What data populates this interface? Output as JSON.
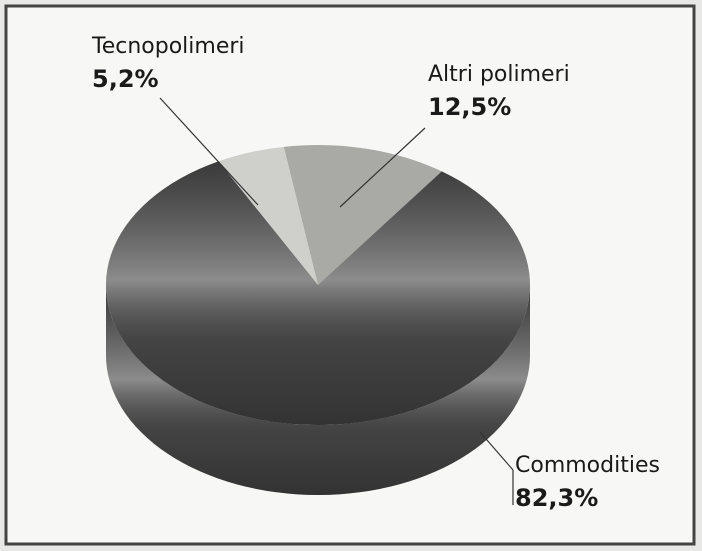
{
  "chart_data": {
    "type": "pie",
    "categories": [
      "Tecnopolimeri",
      "Altri polimeri",
      "Commodities"
    ],
    "values": [
      5.2,
      12.5,
      82.3
    ],
    "value_labels": [
      "5,2%",
      "12,5%",
      "82,3%"
    ],
    "colors": [
      "#cfcfcc",
      "#a9a9a6",
      "#4e4e4e"
    ]
  }
}
